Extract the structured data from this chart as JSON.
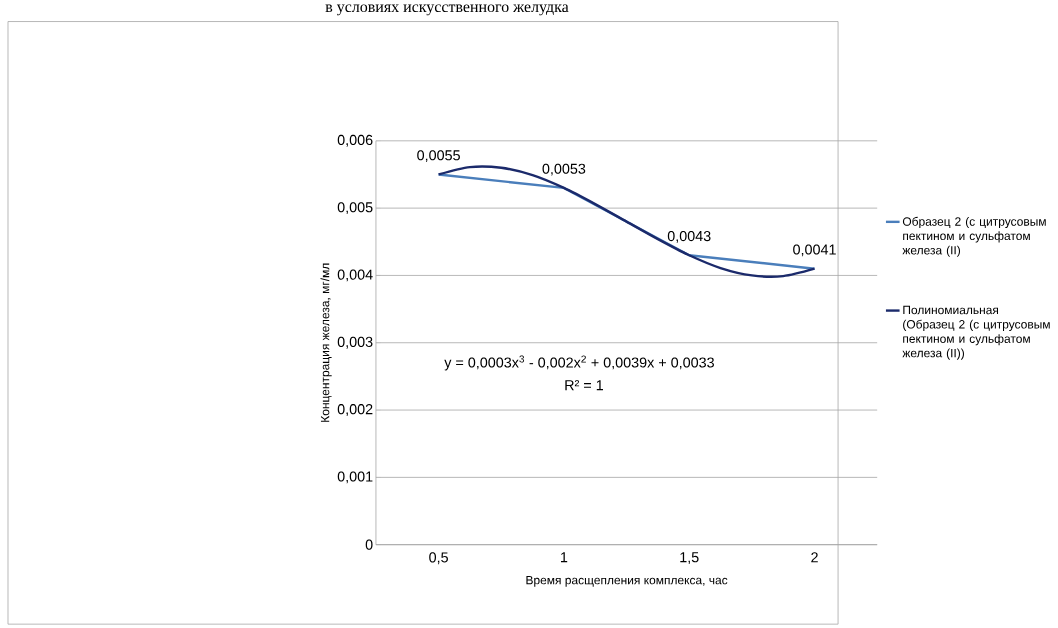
{
  "chart_data": {
    "type": "line",
    "title": "в условиях искусственного желудка",
    "xlabel": "Время расщепления комплекса, час",
    "ylabel": "Концентрация железа, мг/мл",
    "xlim": [
      0.25,
      2.25
    ],
    "xticks": [
      {
        "value": 0.5,
        "label": "0,5"
      },
      1,
      {
        "value": 1.5,
        "label": "1,5"
      },
      2
    ],
    "ylim": [
      0,
      0.006
    ],
    "yticks": [
      0,
      {
        "value": 0.001,
        "label": "0,001"
      },
      {
        "value": 0.002,
        "label": "0,002"
      },
      {
        "value": 0.003,
        "label": "0,003"
      },
      {
        "value": 0.004,
        "label": "0,004"
      },
      {
        "value": 0.005,
        "label": "0,005"
      },
      {
        "value": 0.006,
        "label": "0,006"
      }
    ],
    "grid": "y",
    "legend": "right",
    "series": [
      {
        "name": "Образец 2 (с цитрусовым пектином и сульфатом железа (II)",
        "color": "#4a7ebb",
        "x": [
          0.5,
          1,
          1.5,
          2
        ],
        "values": [
          0.0055,
          0.0053,
          0.0043,
          0.0041
        ],
        "value_labels": [
          "0,0055",
          "0,0053",
          "0,0043",
          "0,0041"
        ]
      },
      {
        "name": "Полиномиальная (Образец 2 (с цитрусовым пектином и сульфатом железа (II))",
        "color": "#1b2a6b",
        "x": [
          0.5,
          0.625,
          0.75,
          0.875,
          1,
          1.125,
          1.25,
          1.375,
          1.5,
          1.625,
          1.75,
          1.875,
          2
        ],
        "values": [
          0.0055,
          0.00561,
          0.0056,
          0.00549,
          0.0053,
          0.00506,
          0.0048,
          0.00454,
          0.0043,
          0.00411,
          0.004,
          0.00399,
          0.0041
        ]
      }
    ],
    "annotations": [
      "y = 0,0003x$^{3}$ - 0,002x$^{2}$ + 0,0039x + 0,0033",
      "R² = 1"
    ]
  }
}
